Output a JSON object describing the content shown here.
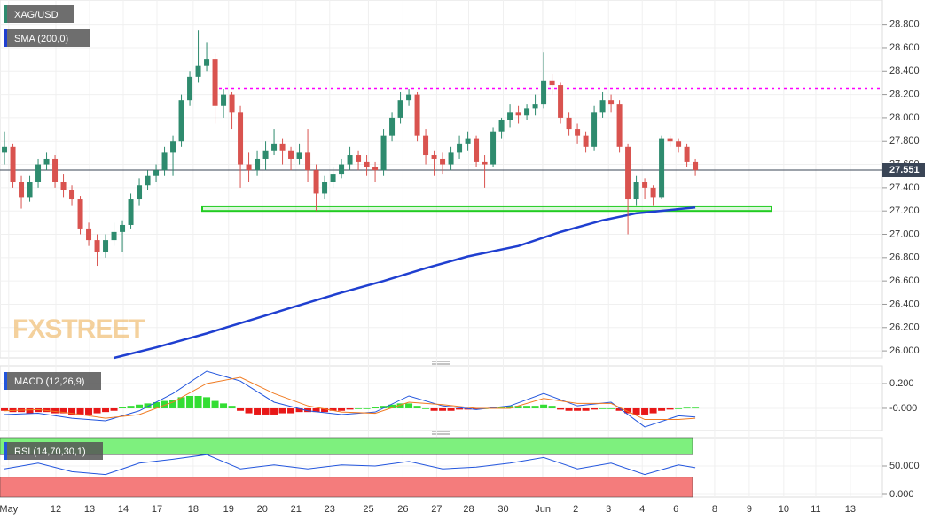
{
  "chart_data": {
    "type": "candlestick",
    "symbol": "XAG/USD",
    "indicator": "SMA (200,0)",
    "watermark": "FXSTREET",
    "up_color": "#2e8b6e",
    "down_color": "#d9534f",
    "ylim": [
      25.94,
      29.01
    ],
    "yticks": [
      {
        "value": 26.0,
        "label": "26.000"
      },
      {
        "value": 26.2,
        "label": "26.200"
      },
      {
        "value": 26.4,
        "label": "26.400"
      },
      {
        "value": 26.6,
        "label": "26.600"
      },
      {
        "value": 26.8,
        "label": "26.800"
      },
      {
        "value": 27.0,
        "label": "27.000"
      },
      {
        "value": 27.2,
        "label": "27.200"
      },
      {
        "value": 27.4,
        "label": "27.400"
      },
      {
        "value": 27.6,
        "label": "27.600"
      },
      {
        "value": 27.8,
        "label": "27.800"
      },
      {
        "value": 28.0,
        "label": "28.000"
      },
      {
        "value": 28.2,
        "label": "28.200"
      },
      {
        "value": 28.4,
        "label": "28.400"
      },
      {
        "value": 28.6,
        "label": "28.600"
      },
      {
        "value": 28.8,
        "label": "28.800"
      }
    ],
    "xlim": [
      -0.53,
      104.2
    ],
    "xticks": [
      {
        "value": 0.5,
        "label": "May"
      },
      {
        "value": 6.1,
        "label": "12"
      },
      {
        "value": 10.1,
        "label": "13"
      },
      {
        "value": 14.1,
        "label": "14"
      },
      {
        "value": 18.1,
        "label": "17"
      },
      {
        "value": 22.4,
        "label": "18"
      },
      {
        "value": 26.6,
        "label": "19"
      },
      {
        "value": 30.6,
        "label": "20"
      },
      {
        "value": 34.6,
        "label": "21"
      },
      {
        "value": 38.6,
        "label": "23"
      },
      {
        "value": 43.2,
        "label": "25"
      },
      {
        "value": 47.3,
        "label": "26"
      },
      {
        "value": 51.3,
        "label": "27"
      },
      {
        "value": 55.1,
        "label": "28"
      },
      {
        "value": 59.2,
        "label": "30"
      },
      {
        "value": 63.9,
        "label": "Jun"
      },
      {
        "value": 67.8,
        "label": "2"
      },
      {
        "value": 71.7,
        "label": "3"
      },
      {
        "value": 75.7,
        "label": "4"
      },
      {
        "value": 79.7,
        "label": "6"
      },
      {
        "value": 84.3,
        "label": "8"
      },
      {
        "value": 88.4,
        "label": "9"
      },
      {
        "value": 92.5,
        "label": "10"
      },
      {
        "value": 96.3,
        "label": "11"
      },
      {
        "value": 100.4,
        "label": "13"
      }
    ],
    "ohlc": [
      [
        27.7,
        27.88,
        27.6,
        27.75
      ],
      [
        27.75,
        27.78,
        27.4,
        27.45
      ],
      [
        27.45,
        27.5,
        27.22,
        27.32
      ],
      [
        27.32,
        27.5,
        27.28,
        27.45
      ],
      [
        27.45,
        27.65,
        27.4,
        27.6
      ],
      [
        27.6,
        27.7,
        27.55,
        27.65
      ],
      [
        27.65,
        27.68,
        27.4,
        27.45
      ],
      [
        27.45,
        27.52,
        27.32,
        27.38
      ],
      [
        27.38,
        27.42,
        27.25,
        27.3
      ],
      [
        27.3,
        27.33,
        27.0,
        27.05
      ],
      [
        27.05,
        27.1,
        26.9,
        26.95
      ],
      [
        26.95,
        27.0,
        26.73,
        26.85
      ],
      [
        26.85,
        27.0,
        26.8,
        26.95
      ],
      [
        26.95,
        27.1,
        26.9,
        27.02
      ],
      [
        27.02,
        27.12,
        26.85,
        27.08
      ],
      [
        27.08,
        27.35,
        27.05,
        27.3
      ],
      [
        27.3,
        27.48,
        27.25,
        27.42
      ],
      [
        27.42,
        27.55,
        27.38,
        27.5
      ],
      [
        27.5,
        27.6,
        27.45,
        27.55
      ],
      [
        27.55,
        27.75,
        27.5,
        27.7
      ],
      [
        27.7,
        27.85,
        27.5,
        27.8
      ],
      [
        27.8,
        28.2,
        27.75,
        28.15
      ],
      [
        28.15,
        28.4,
        28.1,
        28.35
      ],
      [
        28.35,
        28.75,
        28.3,
        28.45
      ],
      [
        28.45,
        28.65,
        28.4,
        28.5
      ],
      [
        28.5,
        28.55,
        27.95,
        28.1
      ],
      [
        28.1,
        28.25,
        28.0,
        28.2
      ],
      [
        28.2,
        28.22,
        27.9,
        28.05
      ],
      [
        28.05,
        28.1,
        27.4,
        27.6
      ],
      [
        27.6,
        27.7,
        27.45,
        27.55
      ],
      [
        27.55,
        27.72,
        27.5,
        27.65
      ],
      [
        27.65,
        27.8,
        27.55,
        27.72
      ],
      [
        27.72,
        27.9,
        27.68,
        27.78
      ],
      [
        27.78,
        27.82,
        27.6,
        27.72
      ],
      [
        27.72,
        27.75,
        27.55,
        27.65
      ],
      [
        27.65,
        27.78,
        27.6,
        27.7
      ],
      [
        27.7,
        27.9,
        27.45,
        27.55
      ],
      [
        27.55,
        27.6,
        27.2,
        27.35
      ],
      [
        27.35,
        27.5,
        27.3,
        27.45
      ],
      [
        27.45,
        27.58,
        27.4,
        27.52
      ],
      [
        27.52,
        27.65,
        27.48,
        27.6
      ],
      [
        27.6,
        27.75,
        27.55,
        27.68
      ],
      [
        27.68,
        27.72,
        27.55,
        27.62
      ],
      [
        27.62,
        27.68,
        27.5,
        27.58
      ],
      [
        27.58,
        27.62,
        27.45,
        27.55
      ],
      [
        27.55,
        27.9,
        27.5,
        27.85
      ],
      [
        27.85,
        28.05,
        27.8,
        28.0
      ],
      [
        28.0,
        28.22,
        27.95,
        28.15
      ],
      [
        28.15,
        28.25,
        28.1,
        28.2
      ],
      [
        28.2,
        28.22,
        27.8,
        27.85
      ],
      [
        27.85,
        27.9,
        27.6,
        27.68
      ],
      [
        27.68,
        27.72,
        27.5,
        27.65
      ],
      [
        27.65,
        27.7,
        27.52,
        27.6
      ],
      [
        27.6,
        27.75,
        27.55,
        27.7
      ],
      [
        27.7,
        27.85,
        27.65,
        27.78
      ],
      [
        27.78,
        27.88,
        27.72,
        27.82
      ],
      [
        27.82,
        27.85,
        27.58,
        27.62
      ],
      [
        27.62,
        27.68,
        27.4,
        27.6
      ],
      [
        27.6,
        27.92,
        27.58,
        27.88
      ],
      [
        27.88,
        28.0,
        27.82,
        27.98
      ],
      [
        27.98,
        28.12,
        27.92,
        28.05
      ],
      [
        28.05,
        28.1,
        27.95,
        28.02
      ],
      [
        28.02,
        28.12,
        27.98,
        28.08
      ],
      [
        28.08,
        28.2,
        28.02,
        28.12
      ],
      [
        28.12,
        28.56,
        28.08,
        28.32
      ],
      [
        28.32,
        28.38,
        28.2,
        28.28
      ],
      [
        28.28,
        28.3,
        27.95,
        28.0
      ],
      [
        28.0,
        28.05,
        27.85,
        27.9
      ],
      [
        27.9,
        27.95,
        27.78,
        27.85
      ],
      [
        27.85,
        27.88,
        27.7,
        27.75
      ],
      [
        27.75,
        28.1,
        27.72,
        28.05
      ],
      [
        28.05,
        28.22,
        28.0,
        28.15
      ],
      [
        28.15,
        28.2,
        28.05,
        28.12
      ],
      [
        28.12,
        28.15,
        27.7,
        27.75
      ],
      [
        27.75,
        27.78,
        27.0,
        27.3
      ],
      [
        27.3,
        27.5,
        27.25,
        27.45
      ],
      [
        27.45,
        27.48,
        27.3,
        27.4
      ],
      [
        27.4,
        27.42,
        27.25,
        27.32
      ],
      [
        27.32,
        27.85,
        27.3,
        27.82
      ],
      [
        27.82,
        27.85,
        27.75,
        27.8
      ],
      [
        27.8,
        27.82,
        27.7,
        27.75
      ],
      [
        27.75,
        27.78,
        27.58,
        27.62
      ],
      [
        27.62,
        27.65,
        27.5,
        27.55
      ]
    ],
    "sma": {
      "color": "#1f3fd0",
      "x": [
        13,
        18,
        24,
        29,
        34,
        40,
        45,
        50,
        55,
        61,
        66,
        71,
        75,
        82
      ],
      "values": [
        25.94,
        26.03,
        26.15,
        26.26,
        26.37,
        26.5,
        26.6,
        26.71,
        26.81,
        26.9,
        27.02,
        27.12,
        27.18,
        27.23
      ]
    },
    "resistance": {
      "value": 28.25,
      "color": "#ff00ff"
    },
    "support": {
      "values": [
        27.2,
        27.24
      ],
      "color": "#22cc22"
    },
    "current_price": 27.551,
    "macd": {
      "name": "MACD (12,26,9)",
      "ylim": [
        -0.179,
        0.343
      ],
      "yticks": [
        {
          "value": 0.2,
          "label": "0.200"
        },
        {
          "value": 0.0,
          "label": "-0.000"
        }
      ],
      "histogram": [
        -0.02,
        -0.03,
        -0.03,
        -0.04,
        -0.03,
        -0.03,
        -0.04,
        -0.04,
        -0.05,
        -0.05,
        -0.05,
        -0.04,
        -0.03,
        -0.02,
        0.01,
        0.02,
        0.03,
        0.04,
        0.05,
        0.06,
        0.07,
        0.09,
        0.1,
        0.1,
        0.09,
        0.06,
        0.04,
        0.02,
        -0.02,
        -0.04,
        -0.05,
        -0.05,
        -0.05,
        -0.04,
        -0.04,
        -0.03,
        -0.03,
        -0.03,
        -0.03,
        -0.02,
        -0.02,
        -0.01,
        0,
        0,
        0.01,
        0.02,
        0.03,
        0.04,
        0.04,
        0.02,
        0,
        -0.02,
        -0.02,
        -0.02,
        -0.01,
        -0.01,
        -0.01,
        0,
        0.01,
        0.01,
        0.02,
        0.02,
        0.02,
        0.02,
        0.03,
        0.02,
        -0.01,
        -0.02,
        -0.02,
        -0.02,
        -0.01,
        0,
        0,
        -0.02,
        -0.04,
        -0.05,
        -0.05,
        -0.04,
        -0.02,
        -0.01,
        0,
        0.005,
        0.005
      ],
      "x": [
        0,
        4,
        8,
        12,
        16,
        20,
        24,
        28,
        32,
        36,
        40,
        44,
        48,
        52,
        56,
        60,
        64,
        68,
        72,
        76,
        80,
        82
      ],
      "series": [
        {
          "color": "#2255dd",
          "values": [
            -0.05,
            -0.04,
            -0.08,
            -0.1,
            -0.02,
            0.12,
            0.3,
            0.22,
            0.05,
            -0.02,
            -0.05,
            -0.03,
            0.1,
            0.02,
            -0.01,
            0.02,
            0.12,
            0.02,
            0.05,
            -0.15,
            -0.06,
            -0.07
          ]
        },
        {
          "color": "#f07b22",
          "values": [
            -0.02,
            -0.01,
            -0.04,
            -0.08,
            -0.05,
            0.05,
            0.2,
            0.25,
            0.12,
            0.02,
            -0.03,
            -0.04,
            0.05,
            0.03,
            0.0,
            0.0,
            0.08,
            0.04,
            0.04,
            -0.09,
            -0.09,
            -0.08
          ]
        }
      ]
    },
    "rsi": {
      "name": "RSI (14,70,30,1)",
      "ylim": [
        -4.7,
        100
      ],
      "upper": 70,
      "lower": 30,
      "yticks": [
        {
          "value": 50,
          "label": "50.000"
        },
        {
          "value": 0,
          "label": "0.000"
        }
      ],
      "color": "#2255dd",
      "x": [
        0,
        4,
        8,
        12,
        16,
        20,
        24,
        28,
        32,
        36,
        40,
        44,
        48,
        52,
        56,
        60,
        64,
        68,
        72,
        76,
        80,
        82
      ],
      "values": [
        45,
        55,
        40,
        35,
        55,
        62,
        70,
        45,
        52,
        45,
        52,
        50,
        58,
        45,
        48,
        55,
        65,
        45,
        55,
        35,
        52,
        47
      ]
    }
  }
}
